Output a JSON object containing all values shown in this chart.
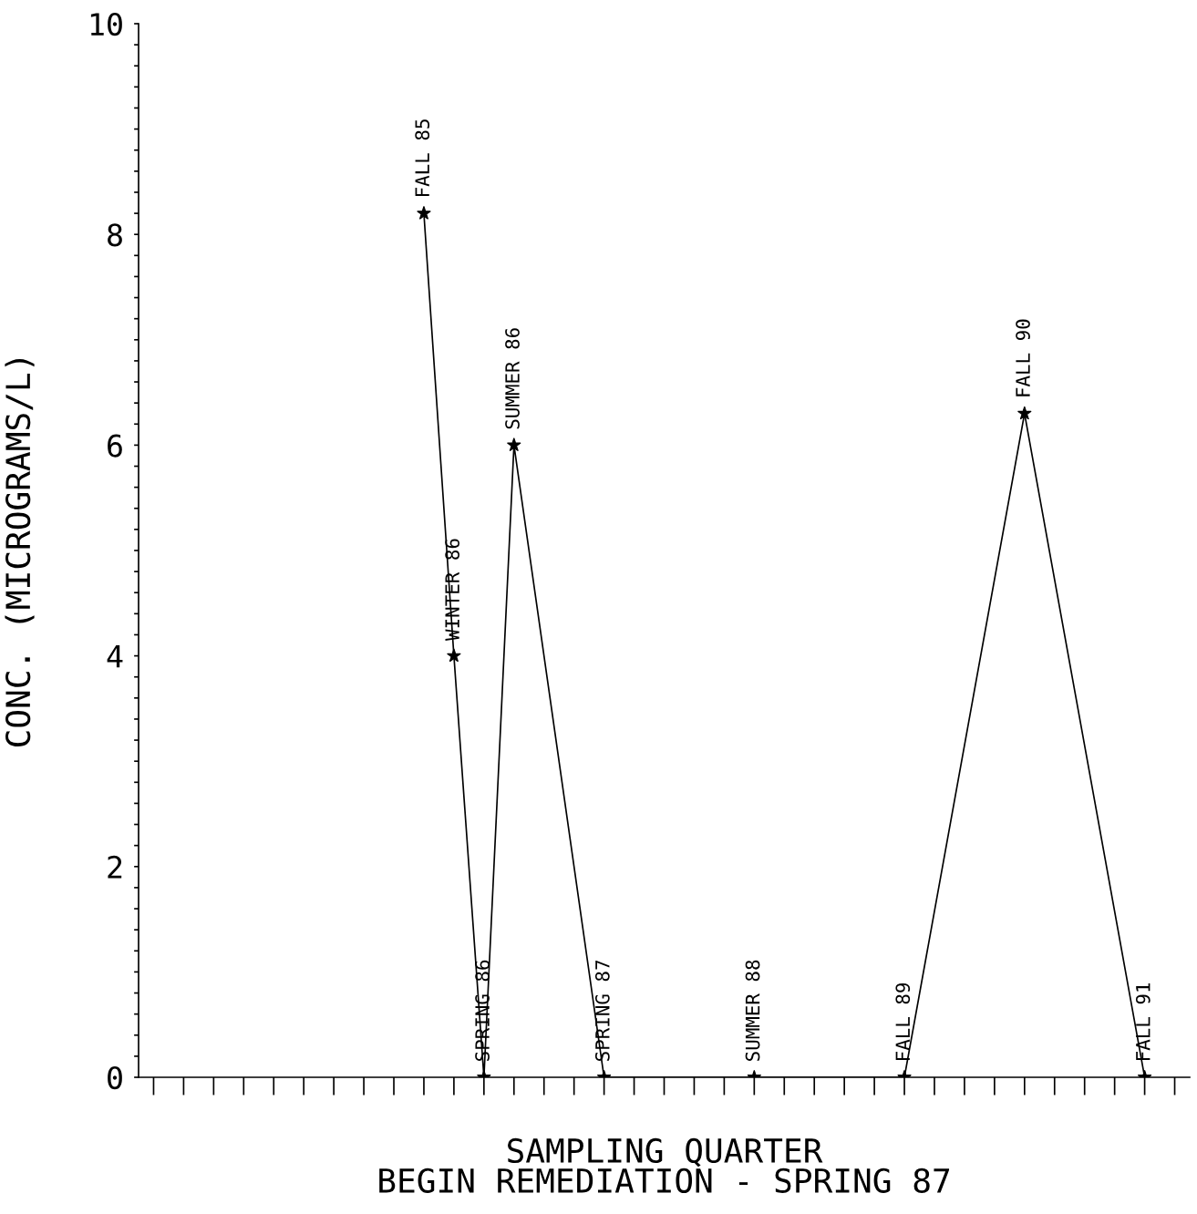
{
  "chart_data": {
    "type": "line",
    "xlabel": "SAMPLING QUARTER",
    "ylabel": "CONC. (MICROGRAMS/L)",
    "annotations": [
      "BEGIN REMEDIATION - SPRING 87"
    ],
    "categories": [
      null,
      null,
      null,
      null,
      null,
      null,
      null,
      null,
      null,
      null,
      null,
      null,
      null,
      null,
      null,
      null,
      null,
      null,
      null,
      null,
      null,
      null,
      null,
      null,
      null,
      null,
      null,
      null,
      null,
      null,
      null,
      null,
      null,
      null,
      null
    ],
    "series": [
      {
        "color": "#000000",
        "values": [
          null,
          null,
          null,
          null,
          null,
          null,
          null,
          null,
          null,
          8.2,
          4.0,
          0,
          6.0,
          null,
          null,
          0,
          null,
          null,
          null,
          null,
          0,
          null,
          null,
          null,
          null,
          0,
          null,
          null,
          null,
          6.3,
          null,
          null,
          null,
          0,
          null
        ],
        "value_labels": [
          null,
          null,
          null,
          null,
          null,
          null,
          null,
          null,
          null,
          "FALL 85",
          "WINTER 86",
          "SPRING 86",
          "SUMMER 86",
          null,
          null,
          "SPRING 87",
          null,
          null,
          null,
          null,
          "SUMMER 88",
          null,
          null,
          null,
          null,
          "FALL 89",
          null,
          null,
          null,
          "FALL 90",
          null,
          null,
          null,
          "FALL 91",
          null
        ]
      }
    ],
    "marker": "star",
    "line_style": "solid",
    "ylim": [
      0,
      10
    ],
    "yticks": [
      0,
      {
        "value": 0.2,
        "label": null
      },
      {
        "value": 0.4,
        "label": null
      },
      {
        "value": 0.6,
        "label": null
      },
      {
        "value": 0.8,
        "label": null
      },
      {
        "value": 1,
        "label": null
      },
      {
        "value": 1.2,
        "label": null
      },
      {
        "value": 1.4,
        "label": null
      },
      {
        "value": 1.6,
        "label": null
      },
      {
        "value": 1.8,
        "label": null
      },
      2,
      {
        "value": 2.2,
        "label": null
      },
      {
        "value": 2.4,
        "label": null
      },
      {
        "value": 2.6,
        "label": null
      },
      {
        "value": 2.8,
        "label": null
      },
      {
        "value": 3,
        "label": null
      },
      {
        "value": 3.2,
        "label": null
      },
      {
        "value": 3.4,
        "label": null
      },
      {
        "value": 3.6,
        "label": null
      },
      {
        "value": 3.8,
        "label": null
      },
      4,
      {
        "value": 4.2,
        "label": null
      },
      {
        "value": 4.4,
        "label": null
      },
      {
        "value": 4.6,
        "label": null
      },
      {
        "value": 4.8,
        "label": null
      },
      {
        "value": 5,
        "label": null
      },
      {
        "value": 5.2,
        "label": null
      },
      {
        "value": 5.4,
        "label": null
      },
      {
        "value": 5.6,
        "label": null
      },
      {
        "value": 5.8,
        "label": null
      },
      6,
      {
        "value": 6.2,
        "label": null
      },
      {
        "value": 6.4,
        "label": null
      },
      {
        "value": 6.6,
        "label": null
      },
      {
        "value": 6.8,
        "label": null
      },
      {
        "value": 7,
        "label": null
      },
      {
        "value": 7.2,
        "label": null
      },
      {
        "value": 7.4,
        "label": null
      },
      {
        "value": 7.6,
        "label": null
      },
      {
        "value": 7.8,
        "label": null
      },
      8,
      {
        "value": 8.2,
        "label": null
      },
      {
        "value": 8.4,
        "label": null
      },
      {
        "value": 8.6,
        "label": null
      },
      {
        "value": 8.8,
        "label": null
      },
      {
        "value": 9,
        "label": null
      },
      {
        "value": 9.2,
        "label": null
      },
      {
        "value": 9.4,
        "label": null
      },
      {
        "value": 9.6,
        "label": null
      },
      {
        "value": 9.8,
        "label": null
      },
      10
    ]
  }
}
